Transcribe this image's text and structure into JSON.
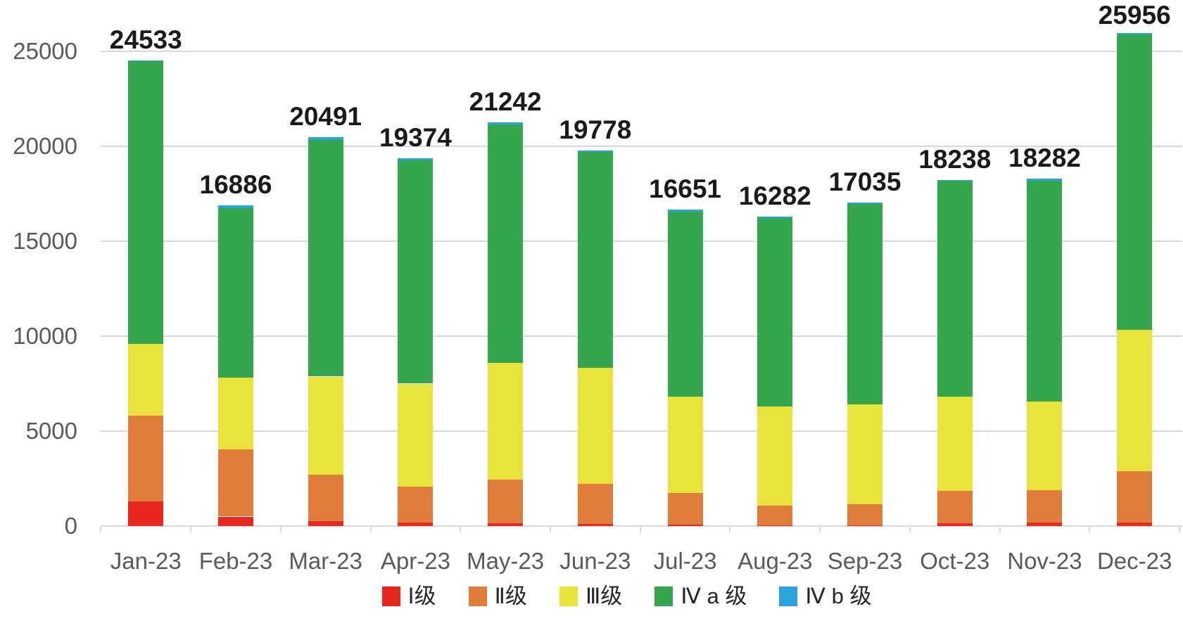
{
  "page": {
    "background": "#ffffff"
  },
  "chart_data": {
    "type": "bar",
    "stacked": true,
    "title": "",
    "xlabel": "",
    "ylabel": "",
    "categories": [
      "Jan-23",
      "Feb-23",
      "Mar-23",
      "Apr-23",
      "May-23",
      "Jun-23",
      "Jul-23",
      "Aug-23",
      "Sep-23",
      "Oct-23",
      "Nov-23",
      "Dec-23"
    ],
    "totals": [
      24533,
      16886,
      20491,
      19374,
      21242,
      19778,
      16651,
      16282,
      17035,
      18238,
      18282,
      25956
    ],
    "series": [
      {
        "name": "Ⅰ级",
        "color": "#e8271e",
        "values": [
          1300,
          500,
          250,
          200,
          150,
          110,
          90,
          30,
          40,
          160,
          180,
          170
        ]
      },
      {
        "name": "Ⅱ级",
        "color": "#e07d3c",
        "values": [
          4500,
          3520,
          2450,
          1860,
          2310,
          2130,
          1650,
          1050,
          1090,
          1680,
          1700,
          2730
        ]
      },
      {
        "name": "Ⅲ级",
        "color": "#e9e43c",
        "values": [
          3800,
          3780,
          5170,
          5440,
          6120,
          6110,
          5080,
          5200,
          5280,
          4980,
          4690,
          7420
        ]
      },
      {
        "name": "Ⅳ a 级",
        "color": "#33a64e",
        "values": [
          14883,
          8936,
          12471,
          11744,
          12572,
          11368,
          9731,
          9952,
          10545,
          11358,
          11622,
          15576
        ]
      },
      {
        "name": "Ⅳ b 级",
        "color": "#2aa5dc",
        "values": [
          50,
          150,
          150,
          130,
          90,
          60,
          100,
          50,
          80,
          60,
          90,
          60
        ]
      }
    ],
    "y_axis": {
      "ticks": [
        0,
        5000,
        10000,
        15000,
        20000,
        25000
      ],
      "range": [
        0,
        26200
      ],
      "gridlines": true
    },
    "legend": {
      "position": "bottom",
      "entries": [
        "Ⅰ级",
        "Ⅱ级",
        "Ⅲ级",
        "Ⅳ a 级",
        "Ⅳ b 级"
      ]
    },
    "value_labels": "totals-above-bars",
    "colors": {
      "gridline": "#d9d9d9",
      "axis_text": "#595959",
      "value_label_text": "#1a1a1a",
      "background": "#ffffff"
    }
  }
}
